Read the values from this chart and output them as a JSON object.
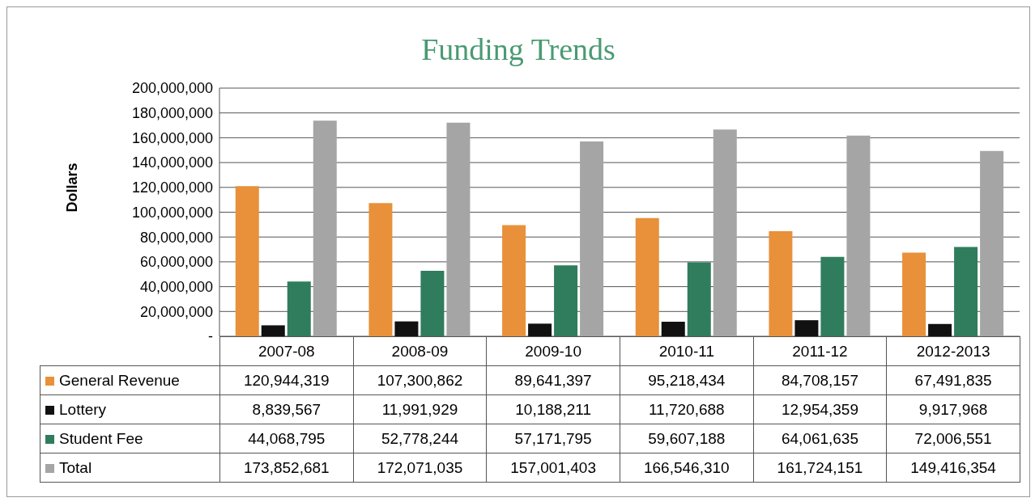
{
  "chart_data": {
    "type": "bar",
    "title": "Funding Trends",
    "ylabel": "Dollars",
    "categories": [
      "2007-08",
      "2008-09",
      "2009-10",
      "2010-11",
      "2011-12",
      "2012-2013"
    ],
    "series": [
      {
        "name": "General Revenue",
        "color": "#e8913a",
        "values": [
          120944319,
          107300862,
          89641397,
          95218434,
          84708157,
          67491835
        ],
        "value_labels": [
          "120,944,319",
          "107,300,862",
          "89,641,397",
          "95,218,434",
          "84,708,157",
          "67,491,835"
        ]
      },
      {
        "name": "Lottery",
        "color": "#111111",
        "values": [
          8839567,
          11991929,
          10188211,
          11720688,
          12954359,
          9917968
        ],
        "value_labels": [
          "8,839,567",
          "11,991,929",
          "10,188,211",
          "11,720,688",
          "12,954,359",
          "9,917,968"
        ]
      },
      {
        "name": "Student Fee",
        "color": "#2f7d5c",
        "values": [
          44068795,
          52778244,
          57171795,
          59607188,
          64061635,
          72006551
        ],
        "value_labels": [
          "44,068,795",
          "52,778,244",
          "57,171,795",
          "59,607,188",
          "64,061,635",
          "72,006,551"
        ]
      },
      {
        "name": "Total",
        "color": "#a5a5a5",
        "values": [
          173852681,
          172071035,
          157001403,
          166546310,
          161724151,
          149416354
        ],
        "value_labels": [
          "173,852,681",
          "172,071,035",
          "157,001,403",
          "166,546,310",
          "161,724,151",
          "149,416,354"
        ]
      }
    ],
    "ylim": [
      0,
      200000000
    ],
    "yticks": [
      {
        "value": 0,
        "label": "-"
      },
      {
        "value": 20000000,
        "label": "20,000,000"
      },
      {
        "value": 40000000,
        "label": "40,000,000"
      },
      {
        "value": 60000000,
        "label": "60,000,000"
      },
      {
        "value": 80000000,
        "label": "80,000,000"
      },
      {
        "value": 100000000,
        "label": "100,000,000"
      },
      {
        "value": 120000000,
        "label": "120,000,000"
      },
      {
        "value": 140000000,
        "label": "140,000,000"
      },
      {
        "value": 160000000,
        "label": "160,000,000"
      },
      {
        "value": 180000000,
        "label": "180,000,000"
      },
      {
        "value": 200000000,
        "label": "200,000,000"
      }
    ],
    "grid": "y",
    "legend": "bottom"
  }
}
